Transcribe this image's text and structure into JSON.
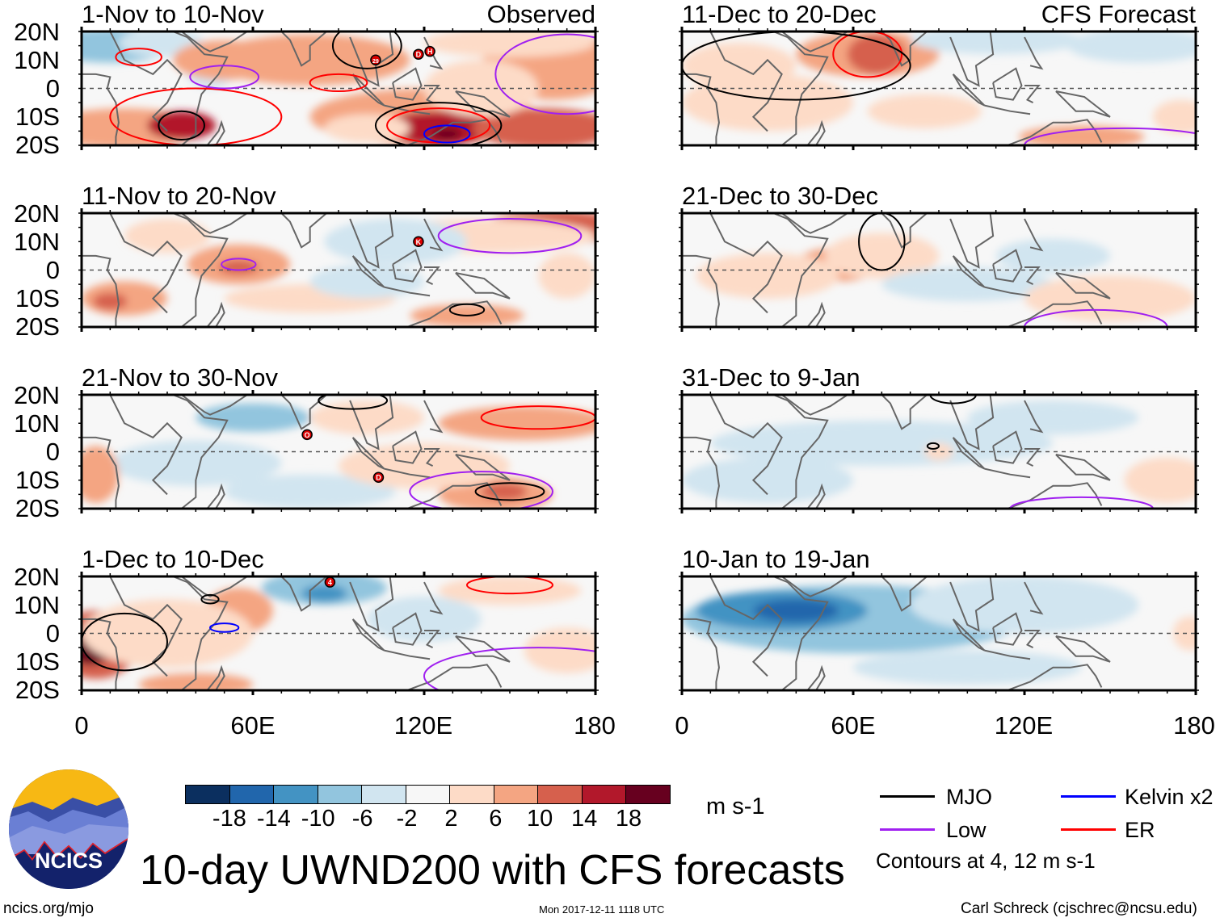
{
  "title": "10-day UWND200 with CFS forecasts",
  "observed_label": "Observed",
  "forecast_label": "CFS Forecast",
  "lat_labels": [
    "20N",
    "10N",
    "0",
    "10S",
    "20S"
  ],
  "lon_labels": [
    "0",
    "60E",
    "120E",
    "180"
  ],
  "panels": [
    {
      "title": "1-Nov to 10-Nov",
      "type": "observed",
      "storms": [
        {
          "name": "29",
          "lon": 103,
          "lat": 10
        },
        {
          "name": "D",
          "lon": 118,
          "lat": 12
        },
        {
          "name": "H",
          "lon": 122,
          "lat": 13
        }
      ]
    },
    {
      "title": "11-Nov to 20-Nov",
      "type": "observed",
      "storms": [
        {
          "name": "K",
          "lon": 118,
          "lat": 10
        }
      ]
    },
    {
      "title": "21-Nov to 30-Nov",
      "type": "observed",
      "storms": [
        {
          "name": "O",
          "lon": 79,
          "lat": 6
        },
        {
          "name": "D",
          "lon": 104,
          "lat": -9
        }
      ]
    },
    {
      "title": "1-Dec to 10-Dec",
      "type": "observed",
      "storms": [
        {
          "name": "4",
          "lon": 87,
          "lat": 18
        }
      ]
    },
    {
      "title": "11-Dec to 20-Dec",
      "type": "forecast",
      "storms": []
    },
    {
      "title": "21-Dec to 30-Dec",
      "type": "forecast",
      "storms": []
    },
    {
      "title": "31-Dec to 9-Jan",
      "type": "forecast",
      "storms": []
    },
    {
      "title": "10-Jan to 19-Jan",
      "type": "forecast",
      "storms": []
    }
  ],
  "colorbar": {
    "labels": [
      "-18",
      "-14",
      "-10",
      "-6",
      "-2",
      "2",
      "6",
      "10",
      "14",
      "18"
    ],
    "colors": [
      "#0b2f5f",
      "#2166ac",
      "#4393c3",
      "#92c5de",
      "#d1e5f0",
      "#f7f7f7",
      "#fddbc7",
      "#f4a582",
      "#d6604d",
      "#b2182b",
      "#67001f"
    ],
    "units": "m s-1"
  },
  "legend": {
    "items": [
      {
        "label": "MJO",
        "color": "#000000"
      },
      {
        "label": "Kelvin x2",
        "color": "#0000ff"
      },
      {
        "label": "Low",
        "color": "#a020f0"
      },
      {
        "label": "ER",
        "color": "#ff0000"
      }
    ],
    "note": "Contours at 4, 12 m s-1"
  },
  "logo_text": "NCICS",
  "footer": {
    "url": "ncics.org/mjo",
    "timestamp": "Mon 2017-12-11 1118 UTC",
    "author": "Carl Schreck (cjschrec@ncsu.edu)"
  }
}
